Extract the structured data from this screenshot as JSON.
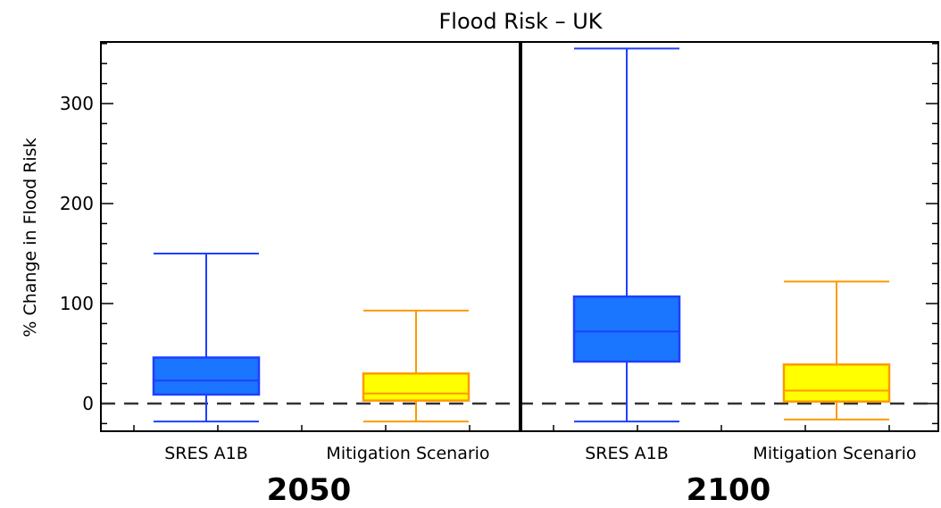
{
  "chart_data": {
    "type": "box",
    "title": "Flood Risk – UK",
    "ylabel": "% Change in Flood Risk",
    "ylim": [
      -30,
      360
    ],
    "yticks": [
      0,
      100,
      200,
      300
    ],
    "reference_line": 0,
    "groups": [
      {
        "label": "2050",
        "boxes": [
          {
            "category": "SRES A1B",
            "color": "#1a75ff",
            "stroke": "#1f3fff",
            "min": -18,
            "q1": 9,
            "median": 23,
            "q3": 46,
            "max": 150
          },
          {
            "category": "Mitigation Scenario",
            "color": "#ffff00",
            "stroke": "#ff9900",
            "min": -18,
            "q1": 3,
            "median": 10,
            "q3": 30,
            "max": 93
          }
        ]
      },
      {
        "label": "2100",
        "boxes": [
          {
            "category": "SRES A1B",
            "color": "#1a75ff",
            "stroke": "#1f3fff",
            "min": -18,
            "q1": 42,
            "median": 72,
            "q3": 107,
            "max": 355
          },
          {
            "category": "Mitigation Scenario",
            "color": "#ffff00",
            "stroke": "#ff9900",
            "min": -16,
            "q1": 2,
            "median": 13,
            "q3": 39,
            "max": 122
          }
        ]
      }
    ]
  }
}
